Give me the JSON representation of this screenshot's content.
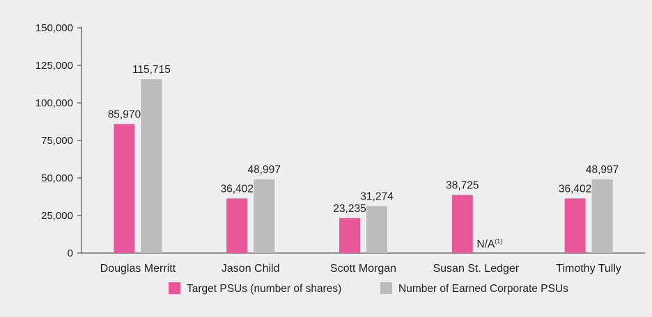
{
  "chart_data": {
    "type": "bar",
    "title": "",
    "xlabel": "",
    "ylabel": "",
    "ylim": [
      0,
      150000
    ],
    "yticks": [
      0,
      25000,
      50000,
      75000,
      100000,
      125000,
      150000
    ],
    "ytick_labels": [
      "0",
      "25,000",
      "50,000",
      "75,000",
      "100,000",
      "125,000",
      "150,000"
    ],
    "categories": [
      "Douglas Merritt",
      "Jason Child",
      "Scott Morgan",
      "Susan St. Ledger",
      "Timothy Tully"
    ],
    "series": [
      {
        "name": "Target PSUs (number of shares)",
        "color": "#e8579a",
        "values": [
          85970,
          36402,
          23235,
          38725,
          36402
        ],
        "labels": [
          "85,970",
          "36,402",
          "23,235",
          "38,725",
          "36,402"
        ]
      },
      {
        "name": "Number of Earned Corporate PSUs",
        "color": "#bcbcbf",
        "values": [
          115715,
          48997,
          31274,
          null,
          48997
        ],
        "labels": [
          "115,715",
          "48,997",
          "31,274",
          "N/A",
          "48,997"
        ],
        "label_notes": [
          null,
          null,
          null,
          "(1)",
          null
        ]
      }
    ],
    "legend": "bottom",
    "grid": false
  }
}
